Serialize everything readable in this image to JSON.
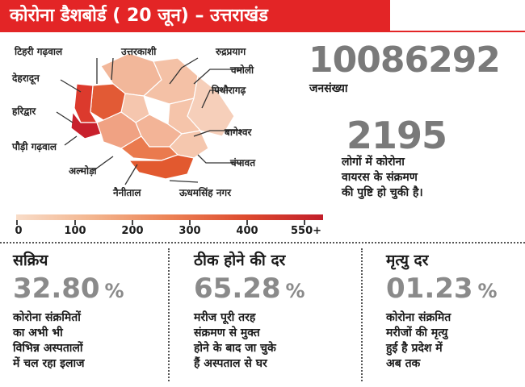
{
  "header": {
    "title": "कोरोना डैशबोर्ड ( 20 जून) – उत्तराखंड"
  },
  "map": {
    "districts": {
      "tehri": "टिहरी गढ़वाल",
      "uttarkashi": "उत्तरकाशी",
      "rudraprayag": "रुद्रप्रयाग",
      "dehradun": "देहरादून",
      "chamoli": "चमोली",
      "pithoragarh": "पिथौरागढ़",
      "haridwar": "हरिद्वार",
      "bageshwar": "बागेश्वर",
      "pauri": "पौड़ी गढ़वाल",
      "almora": "अल्मोड़ा",
      "champawat": "चंपावत",
      "nainital": "नैनीताल",
      "udham_singh_nagar": "ऊधमसिंह नगर"
    },
    "colors": {
      "haridwar": "#c8202c",
      "dehradun": "#dc3a2d",
      "tehri": "#e25a35",
      "uttarkashi": "#f2b79a",
      "rudraprayag": "#f5c6ae",
      "chamoli": "#f4c1a6",
      "pithoragarh": "#f6cfba",
      "bageshwar": "#f5c4aa",
      "pauri": "#f0a283",
      "almora": "#f3b497",
      "nainital": "#ea7a4e",
      "udham_singh_nagar": "#e2592f",
      "champawat": "#f5c7ae"
    }
  },
  "population": {
    "value": "10086292",
    "label": "जनसंख्या"
  },
  "confirmed": {
    "value": "2195",
    "lines": [
      "लोगों में कोरोना",
      "वायरस के संक्रमण",
      "की पुष्टि हो चुकी है।"
    ]
  },
  "scale": {
    "labels": [
      "0",
      "100",
      "200",
      "300",
      "400",
      "550+"
    ]
  },
  "stats": [
    {
      "title": "सक्रिय",
      "value": "32.80",
      "unit": "%",
      "lines": [
        "कोरोना संक्रमितों",
        "का अभी भी",
        "विभिन्न अस्पतालों",
        "में चल रहा इलाज"
      ]
    },
    {
      "title": "ठीक होने की दर",
      "value": "65.28",
      "unit": "%",
      "lines": [
        "मरीज पूरी तरह",
        "संक्रमण से मुक्त",
        "होने के बाद जा चुके",
        "हैं अस्पताल से घर"
      ]
    },
    {
      "title": "मृत्यु दर",
      "value": "01.23",
      "unit": "%",
      "lines": [
        "कोरोना संक्रमित",
        "मरीजों की मृत्यु",
        "हुई है प्रदेश में",
        "अब तक"
      ]
    }
  ]
}
